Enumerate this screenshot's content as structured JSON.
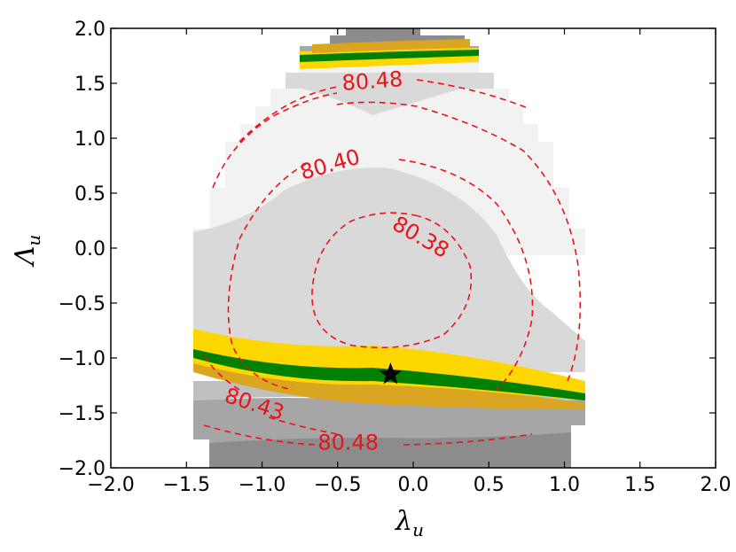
{
  "chart_data": {
    "type": "contour",
    "title": "",
    "xlabel": "λ",
    "xlabel_sub": "u",
    "ylabel": "Λ",
    "ylabel_sub": "u",
    "xlim": [
      -2.0,
      2.0
    ],
    "ylim": [
      -2.0,
      2.0
    ],
    "x_ticks": [
      -2.0,
      -1.5,
      -1.0,
      -0.5,
      0.0,
      0.5,
      1.0,
      1.5,
      2.0
    ],
    "y_ticks": [
      -2.0,
      -1.5,
      -1.0,
      -0.5,
      0.0,
      0.5,
      1.0,
      1.5,
      2.0
    ],
    "x_tick_labels": [
      "−2.0",
      "−1.5",
      "−1.0",
      "−0.5",
      "0.0",
      "0.5",
      "1.0",
      "1.5",
      "2.0"
    ],
    "y_tick_labels": [
      "−2.0",
      "−1.5",
      "−1.0",
      "−0.5",
      "0.0",
      "0.5",
      "1.0",
      "1.5",
      "2.0"
    ],
    "grid": false,
    "colors": {
      "light_gray": "#f2f2f2",
      "mid_gray": "#d9d9d9",
      "gray": "#bfbfbf",
      "dark_gray": "#a6a6a6",
      "darkest_gray": "#8c8c8c",
      "yellow": "#ffd700",
      "orange": "#daa520",
      "green": "#008000",
      "contour": "#e8141b"
    },
    "contour_levels": [
      {
        "label": "80.38",
        "value": 80.38
      },
      {
        "label": "80.40",
        "value": 80.4
      },
      {
        "label": "80.43",
        "value": 80.43
      },
      {
        "label": "80.48",
        "value": 80.48
      }
    ],
    "contour_label_positions": [
      {
        "text": "80.48",
        "x": -0.27,
        "y": 1.52,
        "angle": -4
      },
      {
        "text": "80.40",
        "x": -0.55,
        "y": 0.76,
        "angle": -16
      },
      {
        "text": "80.38",
        "x": 0.05,
        "y": 0.1,
        "angle": 30
      },
      {
        "text": "80.43",
        "x": -1.05,
        "y": -1.42,
        "angle": 18
      },
      {
        "text": "80.48",
        "x": -0.43,
        "y": -1.77,
        "angle": 0
      }
    ],
    "best_fit": {
      "x": -0.15,
      "y": -1.15,
      "marker": "star"
    }
  }
}
